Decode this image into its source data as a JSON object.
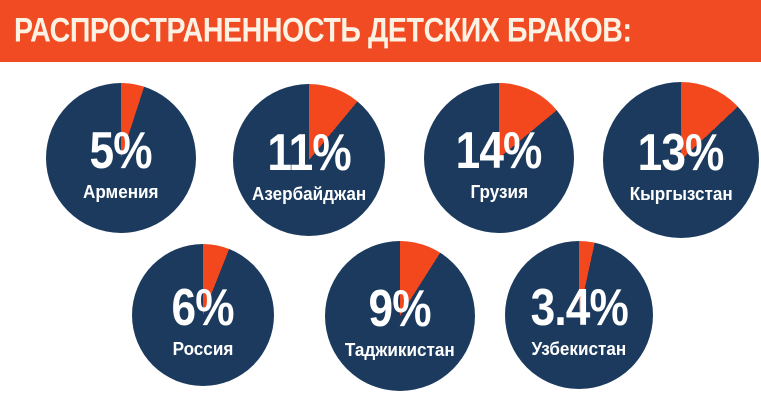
{
  "header": {
    "title": "РАСПРОСТРАНЕННОСТЬ ДЕТСКИХ БРАКОВ:",
    "bg_color": "#F04B22",
    "text_color": "#FBF2E4"
  },
  "colors": {
    "background": "#FFFFFF",
    "circle": "#1B3A5E",
    "slice": "#F3481D",
    "label": "#FFFFFF"
  },
  "chart_data": {
    "type": "pie",
    "title": "РАСПРОСТРАНЕННОСТЬ ДЕТСКИХ БРАКОВ:",
    "unit": "%",
    "note": "seven donut-less pie circles; orange wedge starts at 12 o'clock and sweeps clockwise by value",
    "layout": {
      "rows": [
        4,
        3
      ],
      "legend": "none",
      "labels": "inside"
    },
    "series": [
      {
        "country": "Армения",
        "value": 5,
        "label": "5%"
      },
      {
        "country": "Азербайджан",
        "value": 11,
        "label": "11%"
      },
      {
        "country": "Грузия",
        "value": 14,
        "label": "14%"
      },
      {
        "country": "Кыргызстан",
        "value": 13,
        "label": "13%"
      },
      {
        "country": "Россия",
        "value": 6,
        "label": "6%"
      },
      {
        "country": "Таджикистан",
        "value": 9,
        "label": "9%"
      },
      {
        "country": "Узбекистан",
        "value": 3.4,
        "label": "3.4%"
      }
    ]
  }
}
